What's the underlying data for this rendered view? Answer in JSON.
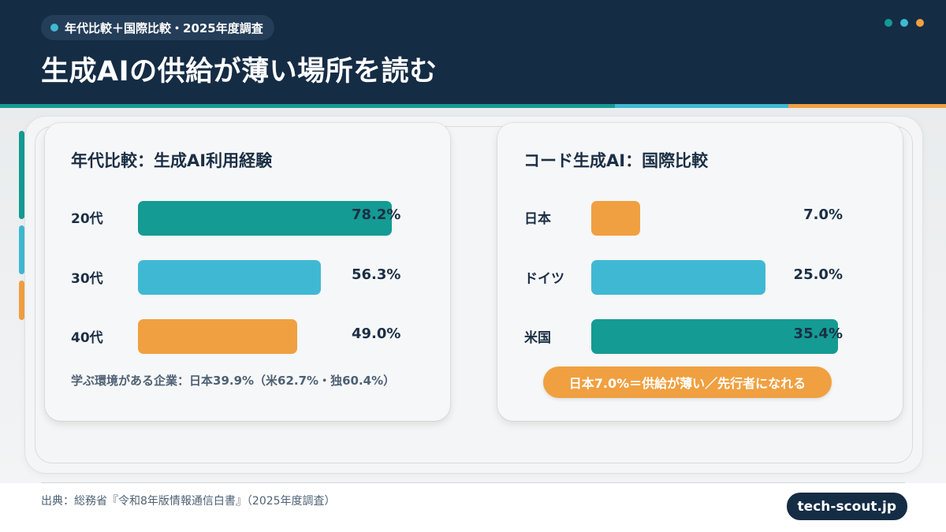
{
  "header": {
    "tag": "年代比較＋国際比較・2025年度調査",
    "title": "生成AIの供給が薄い場所を読む"
  },
  "colors": {
    "navy": "#152c45",
    "teal": "#149b93",
    "cyan": "#3fb9d3",
    "orange": "#f0a040"
  },
  "chart_data": [
    {
      "type": "bar",
      "title": "年代比較：生成AI利用経験",
      "categories": [
        "20代",
        "30代",
        "40代"
      ],
      "values": [
        78.2,
        56.3,
        49.0
      ],
      "value_labels": [
        "78.2%",
        "56.3%",
        "49.0%"
      ],
      "bar_colors": [
        "#149b93",
        "#3fb9d3",
        "#f0a040"
      ],
      "xlim": [
        0,
        78.2
      ],
      "note": "学ぶ環境がある企業：日本39.9%（米62.7%・独60.4%）"
    },
    {
      "type": "bar",
      "title": "コード生成AI：国際比較",
      "categories": [
        "日本",
        "ドイツ",
        "米国"
      ],
      "values": [
        7.0,
        25.0,
        35.4
      ],
      "value_labels": [
        "7.0%",
        "25.0%",
        "35.4%"
      ],
      "bar_colors": [
        "#f0a040",
        "#3fb9d3",
        "#149b93"
      ],
      "xlim": [
        0,
        35.4
      ],
      "callout": "日本7.0%＝供給が薄い／先行者になれる"
    }
  ],
  "footer": {
    "source": "出典：総務省『令和8年版情報通信白書』（2025年度調査）",
    "brand": "tech-scout.jp"
  }
}
